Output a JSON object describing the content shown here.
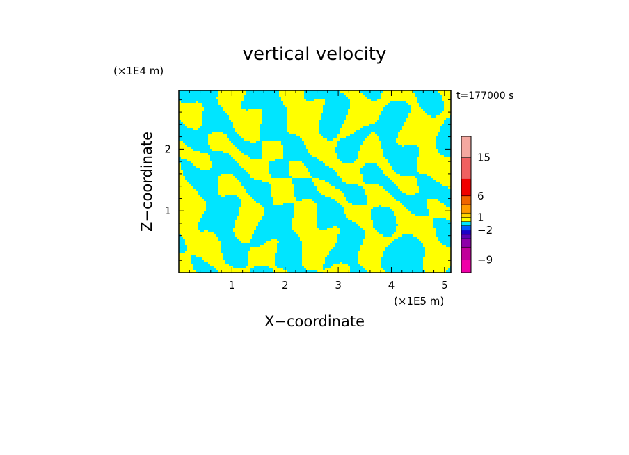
{
  "chart_data": {
    "type": "heatmap",
    "title": "vertical velocity",
    "xlabel": "X−coordinate",
    "ylabel": "Z−coordinate",
    "x_unit": "(×1E5 m)",
    "y_unit": "(×1E4 m)",
    "time_label": "t=177000 s",
    "xlim": [
      0,
      5.12
    ],
    "ylim": [
      0,
      2.95
    ],
    "x_ticks": [
      1,
      2,
      3,
      4,
      5
    ],
    "y_ticks": [
      1,
      2
    ],
    "grid": false,
    "field_colors": [
      "#00e5ff",
      "#ffff00"
    ],
    "colorbar": {
      "levels": [
        {
          "value": -12,
          "color": "#f000a8"
        },
        {
          "value": -9,
          "color": "#c0009a"
        },
        {
          "value": -6,
          "color": "#8e00a8"
        },
        {
          "value": -4,
          "color": "#5a00b4"
        },
        {
          "value": -3,
          "color": "#1c00c8"
        },
        {
          "value": -2,
          "color": "#0058ff"
        },
        {
          "value": -1,
          "color": "#00e5ff"
        },
        {
          "value": 0,
          "color": "#ffff00"
        },
        {
          "value": 1,
          "color": "#ffd400"
        },
        {
          "value": 2,
          "color": "#ff9a00"
        },
        {
          "value": 4,
          "color": "#f06400"
        },
        {
          "value": 6,
          "color": "#f00000"
        },
        {
          "value": 10,
          "color": "#f06060"
        },
        {
          "value": 15,
          "color": "#f4a8a0"
        },
        {
          "value": 20,
          "color": "#ffe8e4"
        }
      ],
      "tick_labels": [
        "15",
        "6",
        "1",
        "−2",
        "−9"
      ]
    }
  }
}
